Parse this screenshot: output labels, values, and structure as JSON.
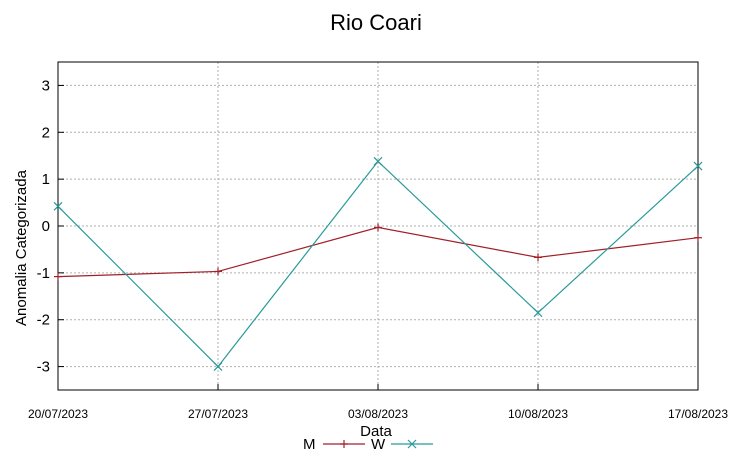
{
  "chart_data": {
    "type": "line",
    "title": "Rio Coari",
    "xlabel": "Data",
    "ylabel": "Anomalia Categorizada",
    "categories": [
      "20/07/2023",
      "27/07/2023",
      "03/08/2023",
      "10/08/2023",
      "17/08/2023"
    ],
    "ylim": [
      -3.5,
      3.5
    ],
    "yticks": [
      3,
      2,
      1,
      0,
      -1,
      -2,
      -3
    ],
    "grid": true,
    "legend_position": "bottom-center",
    "series": [
      {
        "name": "M",
        "color": "#a0202a",
        "marker": "plus",
        "values": [
          -1.08,
          -0.97,
          -0.03,
          -0.67,
          -0.25
        ]
      },
      {
        "name": "W",
        "color": "#2a9a9a",
        "marker": "cross",
        "values": [
          0.42,
          -3.0,
          1.38,
          -1.85,
          1.28
        ]
      }
    ]
  }
}
